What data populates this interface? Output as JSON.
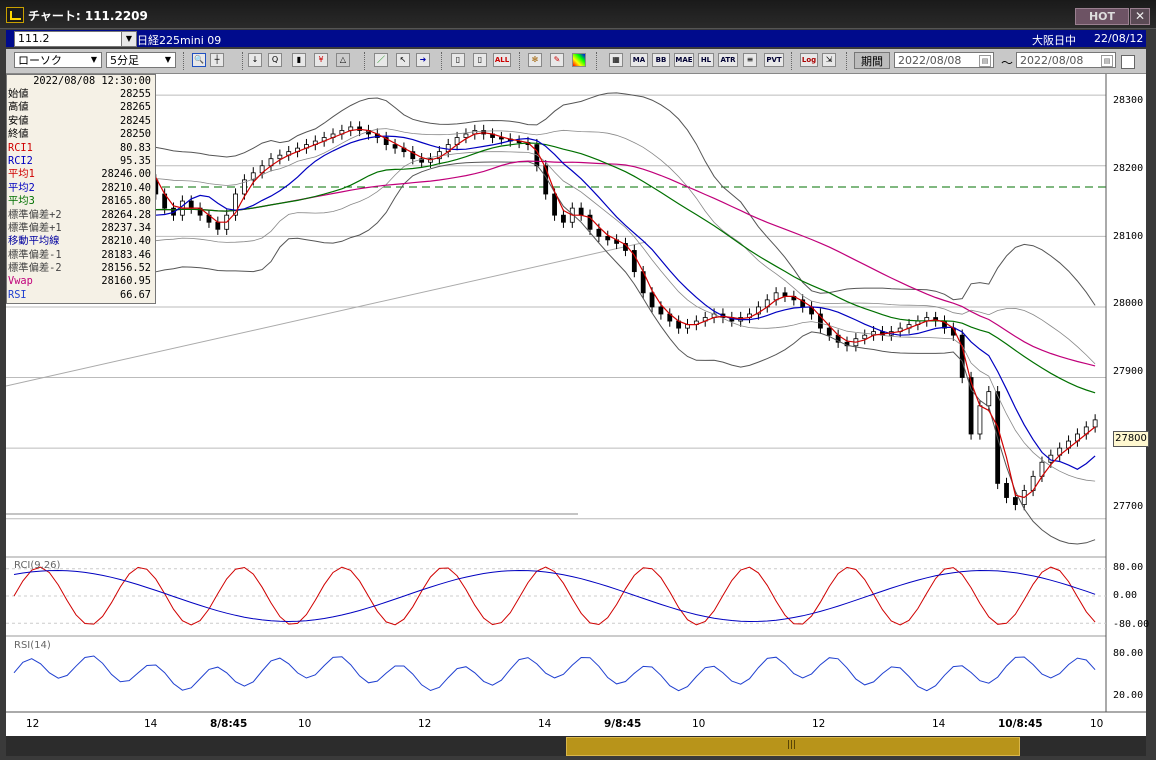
{
  "window": {
    "title": "チャート: 111.2209",
    "hot_label": "HOT",
    "close_label": "✕"
  },
  "infobar": {
    "symbol_value": "111.2",
    "instrument": "日経225mini 09",
    "session": "大阪日中",
    "date": "22/08/12"
  },
  "toolbar": {
    "chart_type": "ローソク",
    "interval": "5分足",
    "text_buttons": [
      "ALL",
      "MA",
      "BB",
      "MAE",
      "HL",
      "ATR",
      "Log",
      "PVT"
    ],
    "period_label": "期間",
    "date_from": "2022/08/08",
    "date_to": "2022/08/08",
    "tilde": "〜"
  },
  "data_panel": {
    "timestamp": "2022/08/08  12:30:00",
    "rows": [
      {
        "label": "始値",
        "value": "28255",
        "color": "#000000"
      },
      {
        "label": "高値",
        "value": "28265",
        "color": "#000000"
      },
      {
        "label": "安値",
        "value": "28245",
        "color": "#000000"
      },
      {
        "label": "終値",
        "value": "28250",
        "color": "#000000"
      },
      {
        "label": "RCI1",
        "value": "80.83",
        "color": "#d00000"
      },
      {
        "label": "RCI2",
        "value": "95.35",
        "color": "#0000c0"
      },
      {
        "label": "平均1",
        "value": "28246.00",
        "color": "#d00000"
      },
      {
        "label": "平均2",
        "value": "28210.40",
        "color": "#0000c0"
      },
      {
        "label": "平均3",
        "value": "28165.80",
        "color": "#007000"
      },
      {
        "label": "標準偏差+2",
        "value": "28264.28",
        "color": "#444444"
      },
      {
        "label": "標準偏差+1",
        "value": "28237.34",
        "color": "#444444"
      },
      {
        "label": "移動平均線",
        "value": "28210.40",
        "color": "#0000a0"
      },
      {
        "label": "標準偏差-1",
        "value": "28183.46",
        "color": "#444444"
      },
      {
        "label": "標準偏差-2",
        "value": "28156.52",
        "color": "#444444"
      },
      {
        "label": "Vwap",
        "value": "28160.95",
        "color": "#c0007a"
      },
      {
        "label": "RSI",
        "value": "66.67",
        "color": "#2040d0"
      }
    ]
  },
  "price_axis": [
    "28300",
    "28200",
    "28100",
    "28000",
    "27900",
    "27800",
    "27700"
  ],
  "current_price": "27800",
  "rci_panel": {
    "title": "RCI(9,26)",
    "ticks": [
      "80.00",
      "0.00",
      "-80.00"
    ]
  },
  "rsi_panel": {
    "title": "RSI(14)",
    "ticks": [
      "80.00",
      "20.00"
    ]
  },
  "time_axis": [
    {
      "label": "12",
      "bold": false
    },
    {
      "label": "14",
      "bold": false
    },
    {
      "label": "8/8:45",
      "bold": true
    },
    {
      "label": "10",
      "bold": false
    },
    {
      "label": "12",
      "bold": false
    },
    {
      "label": "14",
      "bold": false
    },
    {
      "label": "9/8:45",
      "bold": true
    },
    {
      "label": "10",
      "bold": false
    },
    {
      "label": "12",
      "bold": false
    },
    {
      "label": "14",
      "bold": false
    },
    {
      "label": "10/8:45",
      "bold": true
    },
    {
      "label": "10",
      "bold": false
    }
  ],
  "scrollbar": {
    "grip": "|||"
  },
  "colors": {
    "candle_up": "#ffffff",
    "candle_down": "#000000",
    "ma1": "#d00000",
    "ma2": "#0000c0",
    "ma3": "#007000",
    "vwap": "#c0007a",
    "bands": "#555555",
    "rsi": "#2040d0",
    "infobar": "#000b8c"
  },
  "chart_data": {
    "type": "candlestick",
    "price_ylim": [
      27650,
      28330
    ],
    "closes": [
      28150,
      28155,
      28160,
      28145,
      28150,
      28145,
      28140,
      28130,
      28100,
      28060,
      28040,
      28080,
      28140,
      28200,
      28210,
      28180,
      28160,
      28140,
      28130,
      28150,
      28140,
      28130,
      28120,
      28110,
      28130,
      28160,
      28180,
      28190,
      28200,
      28210,
      28215,
      28220,
      28225,
      28230,
      28235,
      28240,
      28245,
      28250,
      28255,
      28250,
      28245,
      28240,
      28230,
      28225,
      28220,
      28210,
      28205,
      28210,
      28220,
      28230,
      28240,
      28245,
      28250,
      28245,
      28240,
      28238,
      28235,
      28233,
      28230,
      28200,
      28160,
      28130,
      28120,
      28140,
      28130,
      28110,
      28100,
      28095,
      28090,
      28080,
      28050,
      28020,
      28000,
      27990,
      27980,
      27970,
      27975,
      27980,
      27985,
      27990,
      27985,
      27980,
      27985,
      27990,
      28000,
      28010,
      28020,
      28015,
      28010,
      28000,
      27990,
      27970,
      27960,
      27950,
      27945,
      27955,
      27960,
      27965,
      27960,
      27965,
      27970,
      27975,
      27980,
      27985,
      27980,
      27970,
      27960,
      27900,
      27820,
      27860,
      27880,
      27750,
      27730,
      27720,
      27740,
      27760,
      27780,
      27790,
      27800,
      27810,
      27820,
      27830,
      27840
    ]
  }
}
